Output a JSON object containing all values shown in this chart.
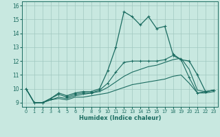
{
  "xlabel": "Humidex (Indice chaleur)",
  "xlim": [
    -0.5,
    23.5
  ],
  "ylim": [
    8.7,
    16.3
  ],
  "xticks": [
    0,
    1,
    2,
    3,
    4,
    5,
    6,
    7,
    8,
    9,
    10,
    11,
    12,
    13,
    14,
    15,
    16,
    17,
    18,
    19,
    20,
    21,
    22,
    23
  ],
  "yticks": [
    9,
    10,
    11,
    12,
    13,
    14,
    15,
    16
  ],
  "bg_color": "#c8e8e0",
  "line_color": "#1a6b60",
  "grid_color": "#a0c8c0",
  "line1_x": [
    0,
    1,
    2,
    3,
    4,
    5,
    6,
    7,
    8,
    9,
    10,
    11,
    12,
    13,
    14,
    15,
    16,
    17,
    18,
    19,
    20,
    21,
    22,
    23
  ],
  "line1_y": [
    10.0,
    9.0,
    9.0,
    9.3,
    9.7,
    9.5,
    9.7,
    9.8,
    9.8,
    10.0,
    11.3,
    13.0,
    15.55,
    15.2,
    14.6,
    15.2,
    14.35,
    14.5,
    12.5,
    12.1,
    12.0,
    11.0,
    9.8,
    9.9
  ],
  "line2_x": [
    0,
    1,
    2,
    3,
    4,
    5,
    6,
    7,
    8,
    9,
    10,
    11,
    12,
    13,
    14,
    15,
    16,
    17,
    18,
    19,
    20,
    21,
    22,
    23
  ],
  "line2_y": [
    10.0,
    9.0,
    9.0,
    9.3,
    9.6,
    9.4,
    9.6,
    9.7,
    9.7,
    9.9,
    10.4,
    11.2,
    11.9,
    12.0,
    12.0,
    12.0,
    12.0,
    12.1,
    12.4,
    12.1,
    10.8,
    9.7,
    9.8,
    9.9
  ],
  "line3_x": [
    0,
    1,
    2,
    3,
    4,
    5,
    6,
    7,
    8,
    9,
    10,
    11,
    12,
    13,
    14,
    15,
    16,
    17,
    18,
    19,
    20,
    21,
    22,
    23
  ],
  "line3_y": [
    10.0,
    9.0,
    9.0,
    9.2,
    9.4,
    9.3,
    9.5,
    9.6,
    9.7,
    9.8,
    10.1,
    10.5,
    10.9,
    11.2,
    11.4,
    11.6,
    11.7,
    11.9,
    12.1,
    12.2,
    11.4,
    9.9,
    9.8,
    9.9
  ],
  "line4_x": [
    0,
    1,
    2,
    3,
    4,
    5,
    6,
    7,
    8,
    9,
    10,
    11,
    12,
    13,
    14,
    15,
    16,
    17,
    18,
    19,
    20,
    21,
    22,
    23
  ],
  "line4_y": [
    10.0,
    9.0,
    9.0,
    9.2,
    9.3,
    9.2,
    9.4,
    9.4,
    9.5,
    9.6,
    9.7,
    9.9,
    10.1,
    10.3,
    10.4,
    10.5,
    10.6,
    10.7,
    10.9,
    11.0,
    10.4,
    9.7,
    9.7,
    9.8
  ]
}
